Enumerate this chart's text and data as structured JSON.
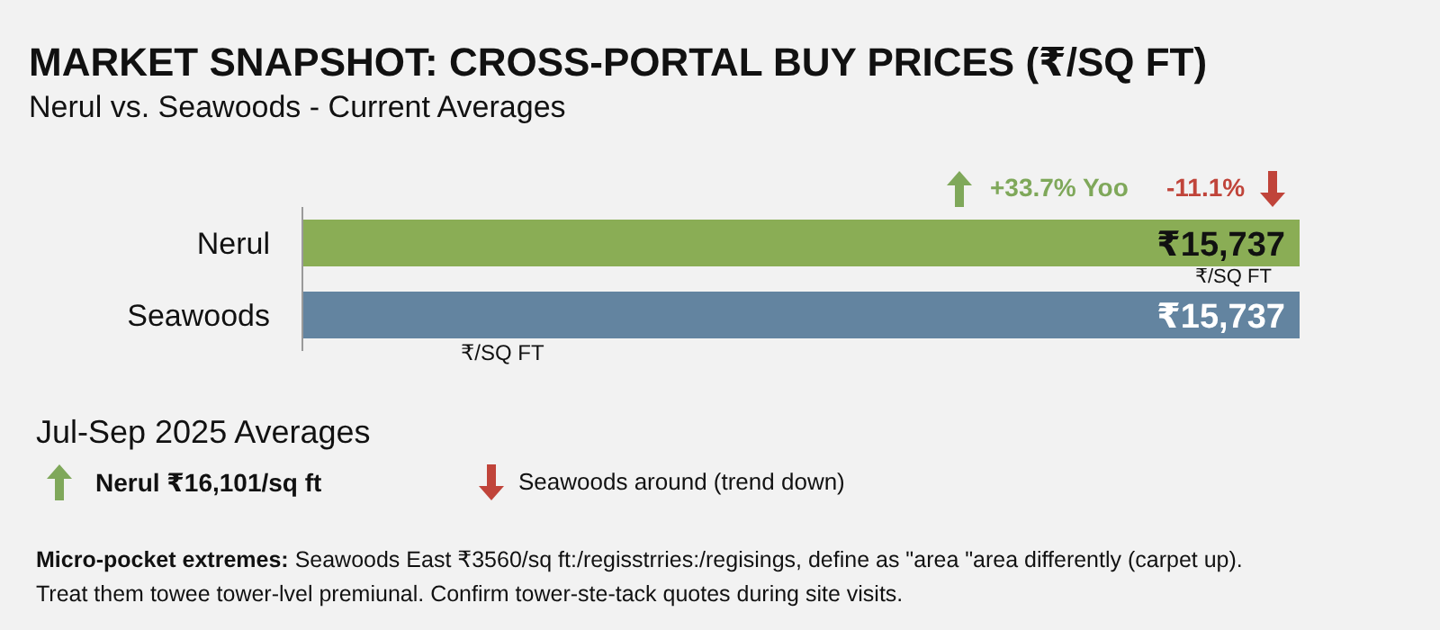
{
  "chart_data": {
    "type": "bar",
    "orientation": "horizontal",
    "title": "MARKET SNAPSHOT: CROSS-PORTAL BUY PRICES (₹/SQ FT)",
    "subtitle": "Nerul vs. Seawoods - Current Averages",
    "categories": [
      "Nerul",
      "Seawoods"
    ],
    "values": [
      15737,
      15737
    ],
    "value_labels": [
      "₹15,737",
      "₹15,737"
    ],
    "colors": [
      "#8aad55",
      "#6384a0"
    ],
    "annotations": [
      "+33.7% Yoo",
      "-11.1%",
      "₹/SQ FT",
      "₹/SQ FT",
      "Jul-Sep 2025 Averages",
      "Nerul ₹16,101/sq ft",
      "Seawoods around (trend down)",
      "Micro-pocket extremes:",
      "Seawoods East ₹3560/sq ft:/regisstrries:/regisings, define as \"area  \"area differently (carpet up).",
      "Treat them towee tower-lvel premiunal. Confirm tower-ste-tack quotes during site visits."
    ]
  }
}
